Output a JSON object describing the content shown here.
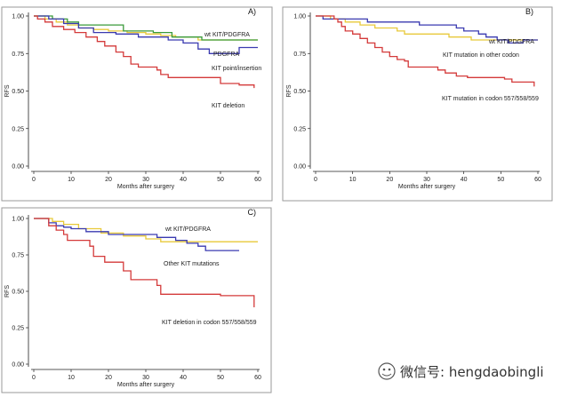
{
  "chart_data": [
    {
      "type": "line",
      "subtype": "kaplan-meier step",
      "panel_label": "A)",
      "xlabel": "Months after surgery",
      "ylabel": "RFS",
      "xlim": [
        0,
        60
      ],
      "ylim": [
        0,
        1
      ],
      "x_ticks": [
        "0",
        "10",
        "20",
        "30",
        "40",
        "50",
        "60"
      ],
      "y_ticks": [
        "0.00",
        "0.25",
        "0.50",
        "0.75",
        "1.00"
      ],
      "series": [
        {
          "name": "wt KIT/PDGFRA",
          "color": "#e8c93a",
          "points": [
            [
              0,
              1.0
            ],
            [
              3,
              0.98
            ],
            [
              6,
              0.96
            ],
            [
              9,
              0.94
            ],
            [
              12,
              0.92
            ],
            [
              16,
              0.91
            ],
            [
              20,
              0.9
            ],
            [
              25,
              0.89
            ],
            [
              30,
              0.88
            ],
            [
              34,
              0.87
            ],
            [
              38,
              0.86
            ],
            [
              44,
              0.84
            ],
            [
              60,
              0.84
            ]
          ]
        },
        {
          "name": "PDGFRA",
          "color": "#3a9a3a",
          "points": [
            [
              0,
              1.0
            ],
            [
              5,
              0.98
            ],
            [
              9,
              0.96
            ],
            [
              12,
              0.94
            ],
            [
              24,
              0.9
            ],
            [
              32,
              0.89
            ],
            [
              37,
              0.86
            ],
            [
              45,
              0.84
            ],
            [
              60,
              0.84
            ]
          ]
        },
        {
          "name": "KIT point/insertion",
          "color": "#3a3ab0",
          "points": [
            [
              0,
              1.0
            ],
            [
              4,
              0.98
            ],
            [
              8,
              0.95
            ],
            [
              12,
              0.92
            ],
            [
              16,
              0.89
            ],
            [
              22,
              0.88
            ],
            [
              28,
              0.86
            ],
            [
              36,
              0.84
            ],
            [
              40,
              0.82
            ],
            [
              44,
              0.78
            ],
            [
              47,
              0.75
            ],
            [
              52,
              0.75
            ],
            [
              55,
              0.79
            ],
            [
              60,
              0.79
            ]
          ]
        },
        {
          "name": "KIT deletion",
          "color": "#d43a3a",
          "points": [
            [
              0,
              1.0
            ],
            [
              1,
              0.98
            ],
            [
              3,
              0.96
            ],
            [
              5,
              0.93
            ],
            [
              8,
              0.91
            ],
            [
              11,
              0.89
            ],
            [
              14,
              0.86
            ],
            [
              17,
              0.83
            ],
            [
              19,
              0.8
            ],
            [
              22,
              0.76
            ],
            [
              24,
              0.73
            ],
            [
              26,
              0.68
            ],
            [
              28,
              0.66
            ],
            [
              33,
              0.64
            ],
            [
              34,
              0.61
            ],
            [
              36,
              0.59
            ],
            [
              40,
              0.59
            ],
            [
              49,
              0.59
            ],
            [
              50,
              0.55
            ],
            [
              55,
              0.54
            ],
            [
              59,
              0.52
            ]
          ]
        }
      ],
      "labels": [
        {
          "text": "wt KIT/PDGFRA",
          "series": 0
        },
        {
          "text": "PDGFRA",
          "series": 1
        },
        {
          "text": "KIT point/insertion",
          "series": 2
        },
        {
          "text": "KIT deletion",
          "series": 3
        }
      ]
    },
    {
      "type": "line",
      "subtype": "kaplan-meier step",
      "panel_label": "B)",
      "xlabel": "Months after surgery",
      "ylabel": "RFS",
      "xlim": [
        0,
        60
      ],
      "ylim": [
        0,
        1
      ],
      "x_ticks": [
        "0",
        "10",
        "20",
        "30",
        "40",
        "50",
        "60"
      ],
      "y_ticks": [
        "0.00",
        "0.25",
        "0.50",
        "0.75",
        "1.00"
      ],
      "series": [
        {
          "name": "wt KIT/PDGFRA",
          "color": "#e8c93a",
          "points": [
            [
              0,
              1.0
            ],
            [
              4,
              0.98
            ],
            [
              8,
              0.96
            ],
            [
              12,
              0.94
            ],
            [
              16,
              0.92
            ],
            [
              22,
              0.9
            ],
            [
              24,
              0.88
            ],
            [
              36,
              0.86
            ],
            [
              42,
              0.84
            ],
            [
              60,
              0.84
            ]
          ]
        },
        {
          "name": "KIT mutation in other codon",
          "color": "#3a3ab0",
          "points": [
            [
              0,
              1.0
            ],
            [
              2,
              0.98
            ],
            [
              14,
              0.96
            ],
            [
              28,
              0.94
            ],
            [
              38,
              0.92
            ],
            [
              40,
              0.9
            ],
            [
              44,
              0.88
            ],
            [
              46,
              0.86
            ],
            [
              49,
              0.84
            ],
            [
              52,
              0.82
            ],
            [
              56,
              0.84
            ],
            [
              60,
              0.84
            ]
          ]
        },
        {
          "name": "KIT mutation in codon 557/558/559",
          "color": "#d43a3a",
          "points": [
            [
              0,
              1.0
            ],
            [
              5,
              0.98
            ],
            [
              6,
              0.96
            ],
            [
              7,
              0.93
            ],
            [
              8,
              0.9
            ],
            [
              10,
              0.88
            ],
            [
              12,
              0.85
            ],
            [
              14,
              0.82
            ],
            [
              16,
              0.79
            ],
            [
              18,
              0.76
            ],
            [
              20,
              0.73
            ],
            [
              22,
              0.71
            ],
            [
              24,
              0.7
            ],
            [
              25,
              0.66
            ],
            [
              33,
              0.64
            ],
            [
              35,
              0.62
            ],
            [
              38,
              0.6
            ],
            [
              41,
              0.59
            ],
            [
              51,
              0.58
            ],
            [
              53,
              0.56
            ],
            [
              59,
              0.53
            ]
          ]
        }
      ],
      "labels": [
        {
          "text": "wt KIT/PDGFRA",
          "series": 0
        },
        {
          "text": "KIT mutation in other codon",
          "series": 1
        },
        {
          "text": "KIT mutation in codon 557/558/559",
          "series": 2
        }
      ]
    },
    {
      "type": "line",
      "subtype": "kaplan-meier step",
      "panel_label": "C)",
      "xlabel": "Months after surgery",
      "ylabel": "RFS",
      "xlim": [
        0,
        60
      ],
      "ylim": [
        0,
        1
      ],
      "x_ticks": [
        "0",
        "10",
        "20",
        "30",
        "40",
        "50",
        "60"
      ],
      "y_ticks": [
        "0.00",
        "0.25",
        "0.50",
        "0.75",
        "1.00"
      ],
      "series": [
        {
          "name": "wt KIT/PDGFRA",
          "color": "#e8c93a",
          "points": [
            [
              0,
              1.0
            ],
            [
              5,
              0.98
            ],
            [
              8,
              0.96
            ],
            [
              12,
              0.93
            ],
            [
              18,
              0.9
            ],
            [
              24,
              0.88
            ],
            [
              30,
              0.86
            ],
            [
              34,
              0.84
            ],
            [
              60,
              0.84
            ]
          ]
        },
        {
          "name": "Other KIT mutations",
          "color": "#3a3ab0",
          "points": [
            [
              0,
              1.0
            ],
            [
              4,
              0.97
            ],
            [
              6,
              0.95
            ],
            [
              8,
              0.94
            ],
            [
              10,
              0.93
            ],
            [
              14,
              0.91
            ],
            [
              20,
              0.89
            ],
            [
              26,
              0.89
            ],
            [
              33,
              0.87
            ],
            [
              38,
              0.85
            ],
            [
              41,
              0.83
            ],
            [
              44,
              0.81
            ],
            [
              46,
              0.78
            ],
            [
              55,
              0.78
            ]
          ]
        },
        {
          "name": "KIT deletion in codon 557/558/559",
          "color": "#d43a3a",
          "points": [
            [
              0,
              1.0
            ],
            [
              4,
              0.95
            ],
            [
              6,
              0.92
            ],
            [
              8,
              0.89
            ],
            [
              9,
              0.85
            ],
            [
              15,
              0.81
            ],
            [
              16,
              0.74
            ],
            [
              19,
              0.7
            ],
            [
              24,
              0.64
            ],
            [
              26,
              0.58
            ],
            [
              33,
              0.54
            ],
            [
              34,
              0.48
            ],
            [
              50,
              0.47
            ],
            [
              59,
              0.39
            ]
          ]
        }
      ],
      "labels": [
        {
          "text": "wt KIT/PDGFRA",
          "series": 0
        },
        {
          "text": "Other KIT mutations",
          "series": 1
        },
        {
          "text": "KIT deletion in codon 557/558/559",
          "series": 2
        }
      ]
    }
  ],
  "watermark": {
    "text": "微信号: hengdaobingli",
    "icon": "wechat-icon"
  }
}
